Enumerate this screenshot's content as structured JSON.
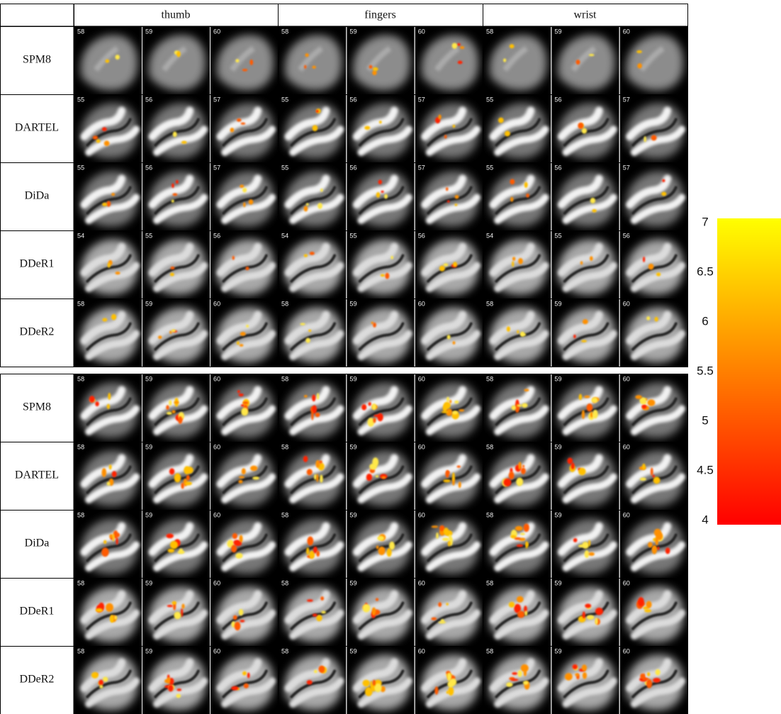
{
  "header": {
    "columns": [
      "thumb",
      "fingers",
      "wrist"
    ]
  },
  "panels": [
    {
      "rows": [
        {
          "label": "SPM8",
          "slices": [
            [
              58,
              59,
              60
            ],
            [
              58,
              59,
              60
            ],
            [
              58,
              59,
              60
            ]
          ]
        },
        {
          "label": "DARTEL",
          "slices": [
            [
              55,
              56,
              57
            ],
            [
              55,
              56,
              57
            ],
            [
              55,
              56,
              57
            ]
          ]
        },
        {
          "label": "DiDa",
          "slices": [
            [
              55,
              56,
              57
            ],
            [
              55,
              56,
              57
            ],
            [
              55,
              56,
              57
            ]
          ]
        },
        {
          "label": "DDeR1",
          "slices": [
            [
              54,
              55,
              56
            ],
            [
              54,
              55,
              56
            ],
            [
              54,
              55,
              56
            ]
          ]
        },
        {
          "label": "DDeR2",
          "slices": [
            [
              58,
              59,
              60
            ],
            [
              58,
              59,
              60
            ],
            [
              58,
              59,
              60
            ]
          ]
        }
      ]
    },
    {
      "rows": [
        {
          "label": "SPM8",
          "slices": [
            [
              58,
              59,
              60
            ],
            [
              58,
              59,
              60
            ],
            [
              58,
              59,
              60
            ]
          ]
        },
        {
          "label": "DARTEL",
          "slices": [
            [
              58,
              59,
              60
            ],
            [
              58,
              59,
              60
            ],
            [
              58,
              59,
              60
            ]
          ]
        },
        {
          "label": "DiDa",
          "slices": [
            [
              58,
              59,
              60
            ],
            [
              58,
              59,
              60
            ],
            [
              58,
              59,
              60
            ]
          ]
        },
        {
          "label": "DDeR1",
          "slices": [
            [
              58,
              59,
              60
            ],
            [
              58,
              59,
              60
            ],
            [
              58,
              59,
              60
            ]
          ]
        },
        {
          "label": "DDeR2",
          "slices": [
            [
              58,
              59,
              60
            ],
            [
              58,
              59,
              60
            ],
            [
              58,
              59,
              60
            ]
          ]
        }
      ]
    }
  ],
  "colorbar": {
    "range": [
      4,
      7
    ],
    "ticks": [
      4,
      4.5,
      5,
      5.5,
      6,
      6.5,
      7
    ],
    "colors": [
      "#ff0000",
      "#ffff00"
    ]
  }
}
